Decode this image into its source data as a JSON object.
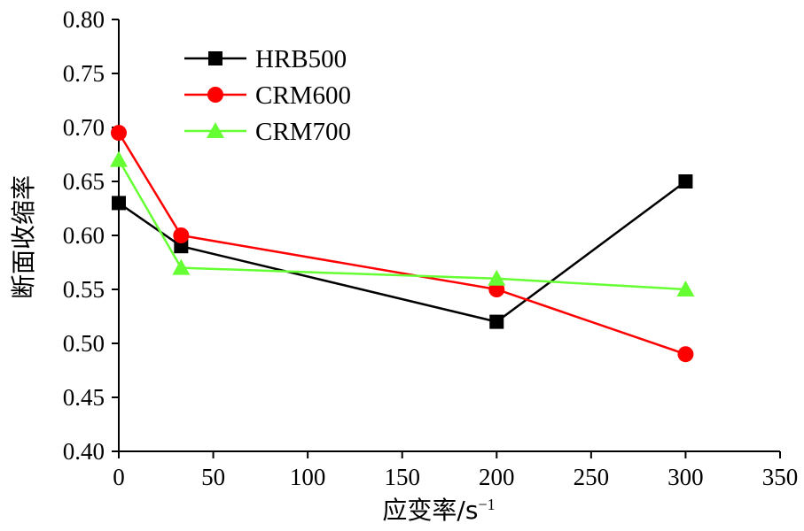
{
  "chart_data": {
    "type": "line",
    "xlabel": "应变率/s",
    "xlabel_sup": "−1",
    "ylabel": "断面收缩率",
    "xlim": [
      0,
      350
    ],
    "ylim": [
      0.4,
      0.8
    ],
    "xticks": [
      "0",
      "50",
      "100",
      "150",
      "200",
      "250",
      "300",
      "350"
    ],
    "yticks": [
      "0.40",
      "0.45",
      "0.50",
      "0.55",
      "0.60",
      "0.65",
      "0.70",
      "0.75",
      "0.80"
    ],
    "grid": false,
    "legend_position": "top-left",
    "series": [
      {
        "name": "HRB500",
        "color": "#000000",
        "marker": "square",
        "x": [
          0,
          33,
          200,
          300
        ],
        "y": [
          0.63,
          0.59,
          0.52,
          0.65
        ]
      },
      {
        "name": "CRM600",
        "color": "#ff0000",
        "marker": "circle",
        "x": [
          0,
          33,
          200,
          300
        ],
        "y": [
          0.695,
          0.6,
          0.55,
          0.49
        ]
      },
      {
        "name": "CRM700",
        "color": "#66ff33",
        "marker": "triangle",
        "x": [
          0,
          33,
          200,
          300
        ],
        "y": [
          0.67,
          0.57,
          0.56,
          0.55
        ]
      }
    ]
  }
}
